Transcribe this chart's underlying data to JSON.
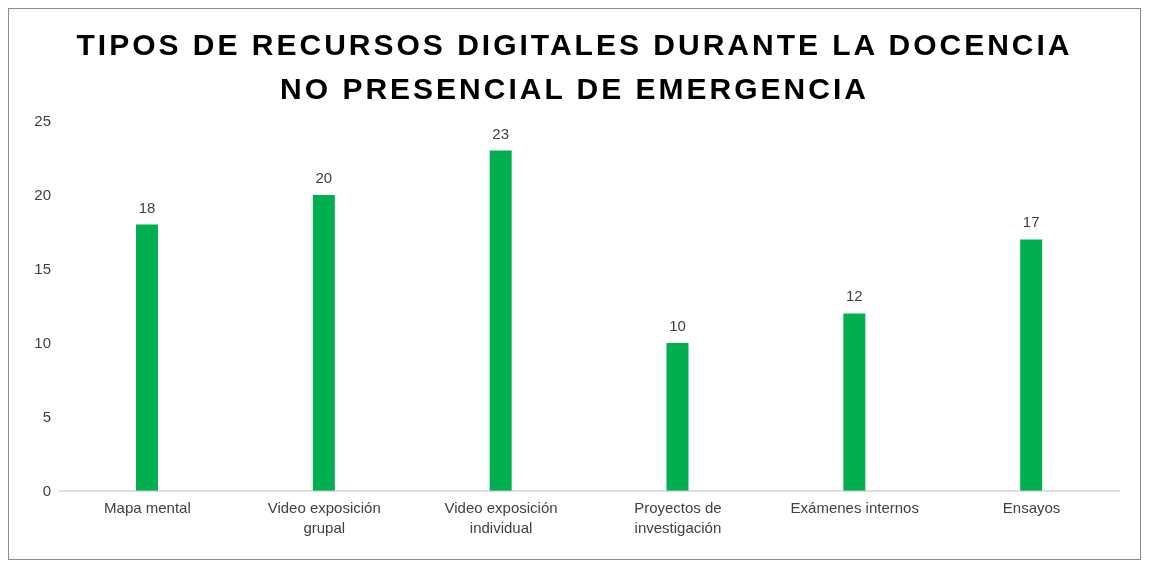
{
  "chart_data": {
    "type": "bar",
    "title": "TIPOS DE RECURSOS DIGITALES DURANTE LA DOCENCIA NO PRESENCIAL DE EMERGENCIA",
    "categories": [
      "Mapa mental",
      "Video exposición grupal",
      "Video exposición individual",
      "Proyectos de investigación",
      "Exámenes internos",
      "Ensayos"
    ],
    "values": [
      18,
      20,
      23,
      10,
      12,
      17
    ],
    "color": "#00b050",
    "ylim": [
      0,
      25
    ],
    "yticks": [
      0,
      5,
      10,
      15,
      20,
      25
    ],
    "grid": false,
    "data_labels": true
  }
}
